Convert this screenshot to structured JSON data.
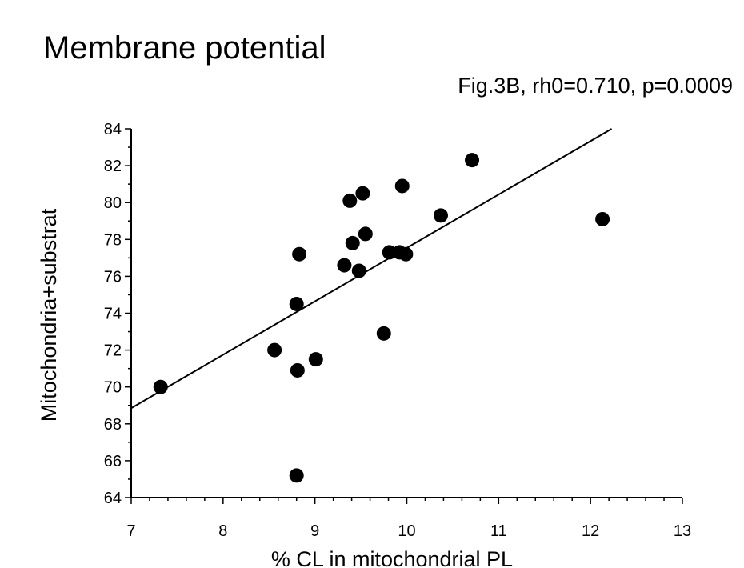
{
  "chart_data": {
    "type": "scatter",
    "title": "Membrane potential",
    "subtitle": "Fig.3B, rh0=0.710, p=0.0009",
    "xlabel": "% CL in mitochondrial PL",
    "ylabel": "Mitochondria+substrat",
    "xlim": [
      7,
      13
    ],
    "ylim": [
      64,
      84
    ],
    "x_ticks": [
      "7",
      "8",
      "9",
      "10",
      "11",
      "12",
      "13"
    ],
    "y_ticks": [
      "64",
      "66",
      "68",
      "70",
      "72",
      "74",
      "76",
      "78",
      "80",
      "82",
      "84"
    ],
    "grid": false,
    "points": [
      {
        "x": 7.32,
        "y": 70.0
      },
      {
        "x": 8.56,
        "y": 72.0
      },
      {
        "x": 8.8,
        "y": 65.2
      },
      {
        "x": 8.81,
        "y": 70.9
      },
      {
        "x": 8.8,
        "y": 74.5
      },
      {
        "x": 8.83,
        "y": 77.2
      },
      {
        "x": 9.01,
        "y": 71.5
      },
      {
        "x": 9.32,
        "y": 76.6
      },
      {
        "x": 9.38,
        "y": 80.1
      },
      {
        "x": 9.41,
        "y": 77.8
      },
      {
        "x": 9.48,
        "y": 76.3
      },
      {
        "x": 9.52,
        "y": 80.5
      },
      {
        "x": 9.55,
        "y": 78.3
      },
      {
        "x": 9.75,
        "y": 72.9
      },
      {
        "x": 9.81,
        "y": 77.3
      },
      {
        "x": 9.92,
        "y": 77.3
      },
      {
        "x": 9.95,
        "y": 80.9
      },
      {
        "x": 9.99,
        "y": 77.2
      },
      {
        "x": 10.37,
        "y": 79.3
      },
      {
        "x": 10.71,
        "y": 82.3
      },
      {
        "x": 12.13,
        "y": 79.1
      }
    ],
    "fit_line": {
      "x": [
        7.0,
        12.23
      ],
      "y": [
        68.85,
        84.0
      ]
    },
    "colors": {
      "points": "#000000",
      "line": "#000000",
      "axes": "#000000"
    }
  }
}
